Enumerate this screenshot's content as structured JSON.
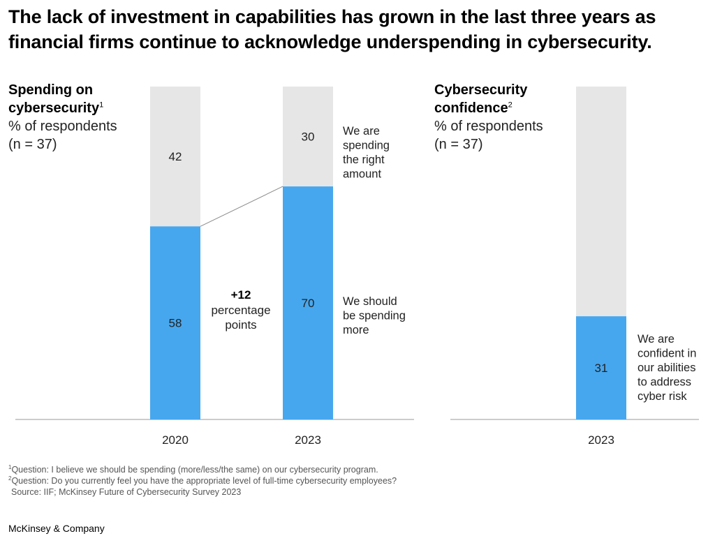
{
  "title": "The lack of investment in capabilities has grown in the last three years as financial firms continue to acknowledge underspending in cybersecurity.",
  "colors": {
    "blue": "#47a7ee",
    "gray": "#e6e6e6",
    "axis": "#9a9a9a"
  },
  "left_panel": {
    "title_line1": "Spending on",
    "title_line2": "cybersecurity",
    "title_sup": "1",
    "unit": "% of respondents",
    "n": "(n = 37)"
  },
  "right_panel": {
    "title_line1": "Cybersecurity",
    "title_line2": "confidence",
    "title_sup": "2",
    "unit": "% of respondents",
    "n": "(n = 37)"
  },
  "annotation": {
    "bold": "+12",
    "line2": "percentage",
    "line3": "points"
  },
  "footnotes": {
    "f1_sup": "1",
    "f1": "Question: I believe we should be spending (more/less/the same) on our cybersecurity program.",
    "f2_sup": "2",
    "f2": "Question: Do you currently feel you have the appropriate level of full-time cybersecurity employees?",
    "source": "Source: IIF; McKinsey Future of Cybersecurity Survey 2023"
  },
  "brand": "McKinsey & Company",
  "chart_data": [
    {
      "type": "bar",
      "stacked": true,
      "categories": [
        "2020",
        "2023"
      ],
      "series": [
        {
          "name": "We should be spending more",
          "values": [
            58,
            70
          ]
        },
        {
          "name": "We are spending the right amount",
          "values": [
            42,
            30
          ]
        }
      ],
      "ylim": [
        0,
        100
      ]
    },
    {
      "type": "bar",
      "stacked": true,
      "categories": [
        "2023"
      ],
      "series": [
        {
          "name": "We are confident in our abilities to address cyber risk",
          "values": [
            31
          ]
        }
      ],
      "ylim": [
        0,
        100
      ]
    }
  ]
}
